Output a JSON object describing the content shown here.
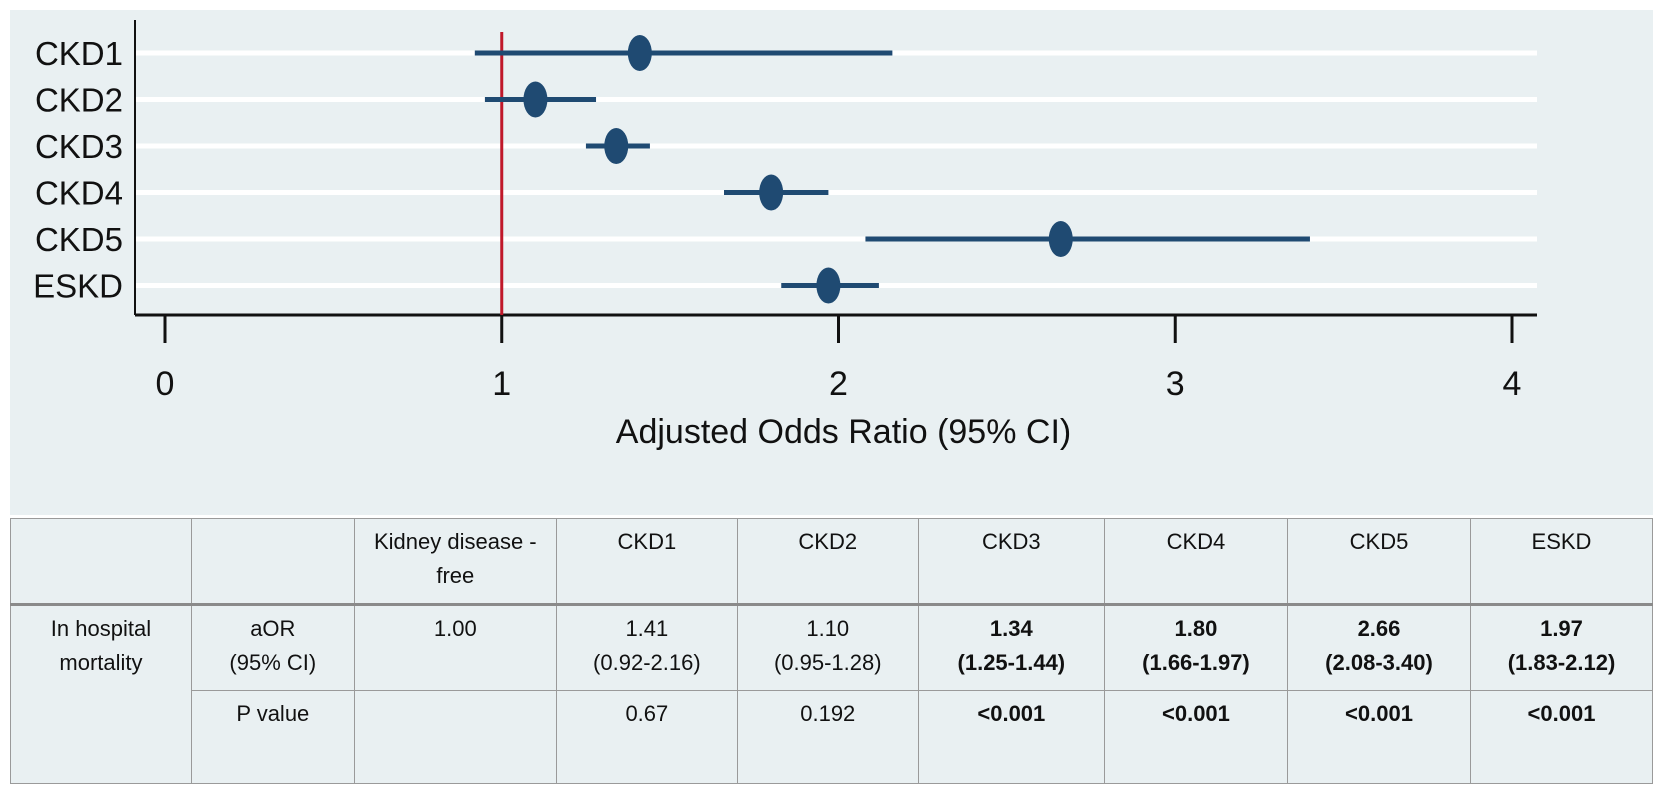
{
  "chart_data": {
    "type": "forest",
    "categories": [
      "CKD1",
      "CKD2",
      "CKD3",
      "CKD4",
      "CKD5",
      "ESKD"
    ],
    "estimates": [
      1.41,
      1.1,
      1.34,
      1.8,
      2.66,
      1.97
    ],
    "ci_lower": [
      0.92,
      0.95,
      1.25,
      1.66,
      2.08,
      1.83
    ],
    "ci_upper": [
      2.16,
      1.28,
      1.44,
      1.97,
      3.4,
      2.12
    ],
    "xlabel": "Adjusted Odds Ratio (95% CI)",
    "xlim": [
      0,
      4
    ],
    "xticks": [
      "0",
      "1",
      "2",
      "3",
      "4"
    ],
    "reference_line": 1,
    "colors": {
      "marker": "#1f4a72",
      "reference": "#c0182a",
      "grid": "#ffffff",
      "background": "#e9f0f2"
    }
  },
  "table": {
    "headers": [
      "",
      "",
      "Kidney disease -free",
      "CKD1",
      "CKD2",
      "CKD3",
      "CKD4",
      "CKD5",
      "ESKD"
    ],
    "row_label": "In hospital mortality",
    "aor_label": "aOR",
    "aor_ci_label": "(95% CI)",
    "aor_values": [
      "1.00",
      "1.41",
      "1.10",
      "1.34",
      "1.80",
      "2.66",
      "1.97"
    ],
    "aor_cis": [
      "",
      "(0.92-2.16)",
      "(0.95-1.28)",
      "(1.25-1.44)",
      "(1.66-1.97)",
      "(2.08-3.40)",
      "(1.83-2.12)"
    ],
    "p_label": "P value",
    "p_values": [
      "",
      "0.67",
      "0.192",
      "<0.001",
      "<0.001",
      "<0.001",
      "<0.001"
    ]
  }
}
